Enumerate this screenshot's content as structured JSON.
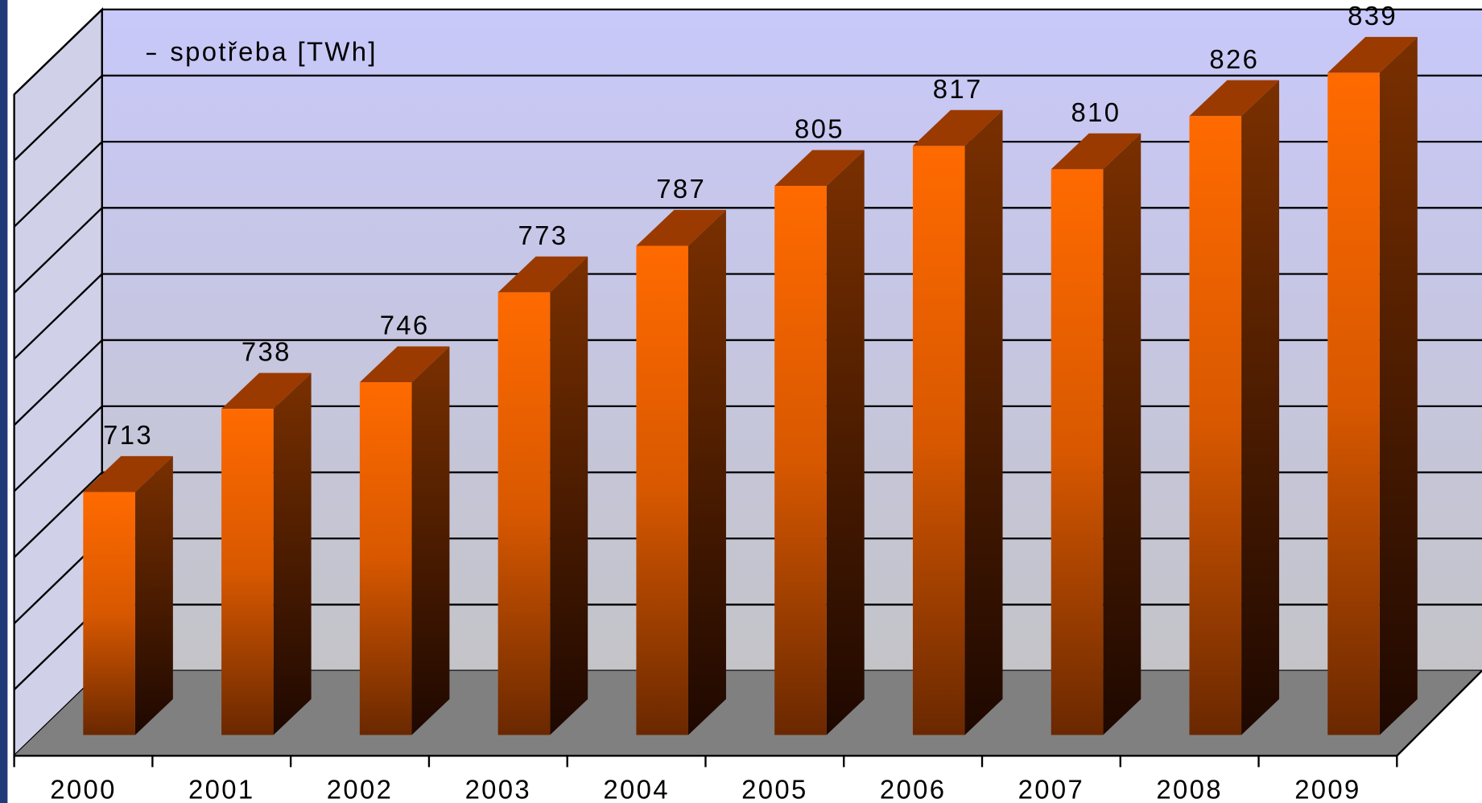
{
  "chart_data": {
    "type": "bar3d",
    "categories": [
      "2000",
      "2001",
      "2002",
      "2003",
      "2004",
      "2005",
      "2006",
      "2007",
      "2008",
      "2009"
    ],
    "series": [
      {
        "name": "spotřeba [TWh]",
        "color": "#ff6600",
        "values": [
          713,
          738,
          746,
          773,
          787,
          805,
          817,
          810,
          826,
          839
        ]
      }
    ],
    "ylim": [
      640,
      840
    ],
    "yticks": [
      640,
      660,
      680,
      700,
      720,
      740,
      760,
      780,
      800,
      820,
      840
    ],
    "grid": true
  }
}
